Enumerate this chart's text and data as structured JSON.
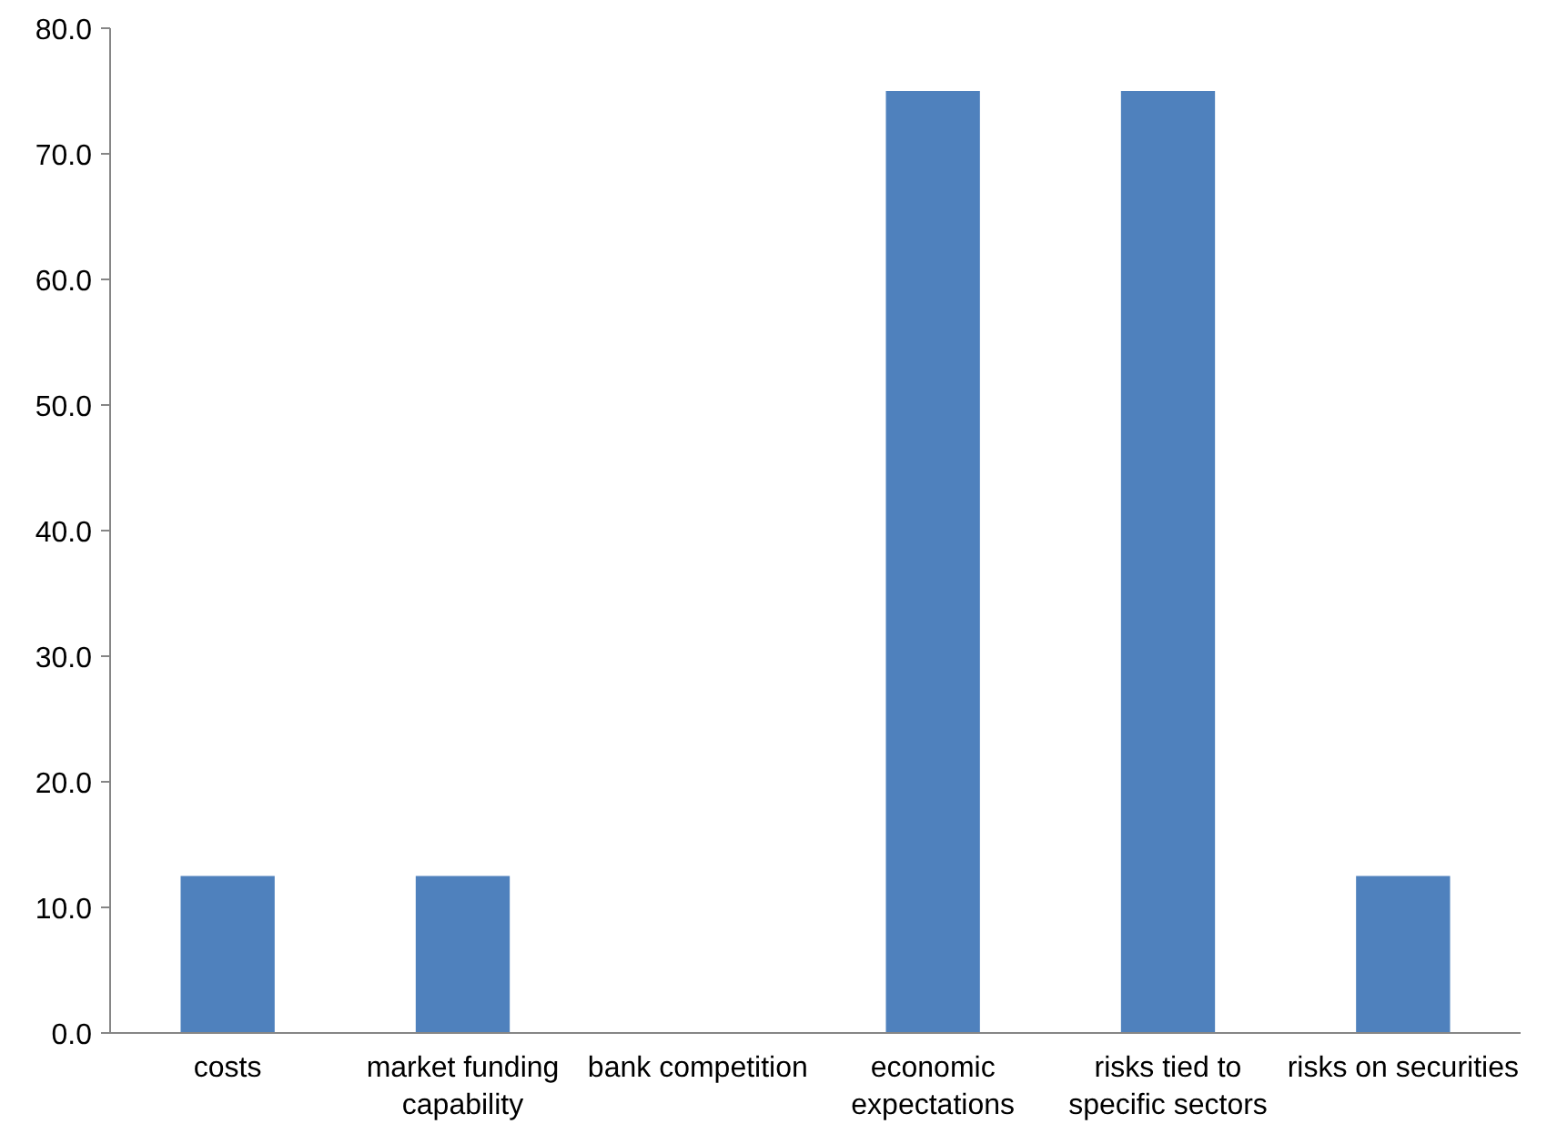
{
  "chart_data": {
    "type": "bar",
    "categories": [
      "costs",
      "market funding capability",
      "bank competition",
      "economic expectations",
      "risks tied to specific sectors",
      "risks on securities"
    ],
    "values": [
      12.5,
      12.5,
      0,
      75,
      75,
      12.5
    ],
    "color": "#4f81bd",
    "ylim": [
      0,
      80
    ],
    "yticks": [
      {
        "value": 0,
        "label": "0.0"
      },
      {
        "value": 10,
        "label": "10.0"
      },
      {
        "value": 20,
        "label": "20.0"
      },
      {
        "value": 30,
        "label": "30.0"
      },
      {
        "value": 40,
        "label": "40.0"
      },
      {
        "value": 50,
        "label": "50.0"
      },
      {
        "value": 60,
        "label": "60.0"
      },
      {
        "value": 70,
        "label": "70.0"
      },
      {
        "value": 80,
        "label": "80.0"
      }
    ],
    "grid": false
  }
}
